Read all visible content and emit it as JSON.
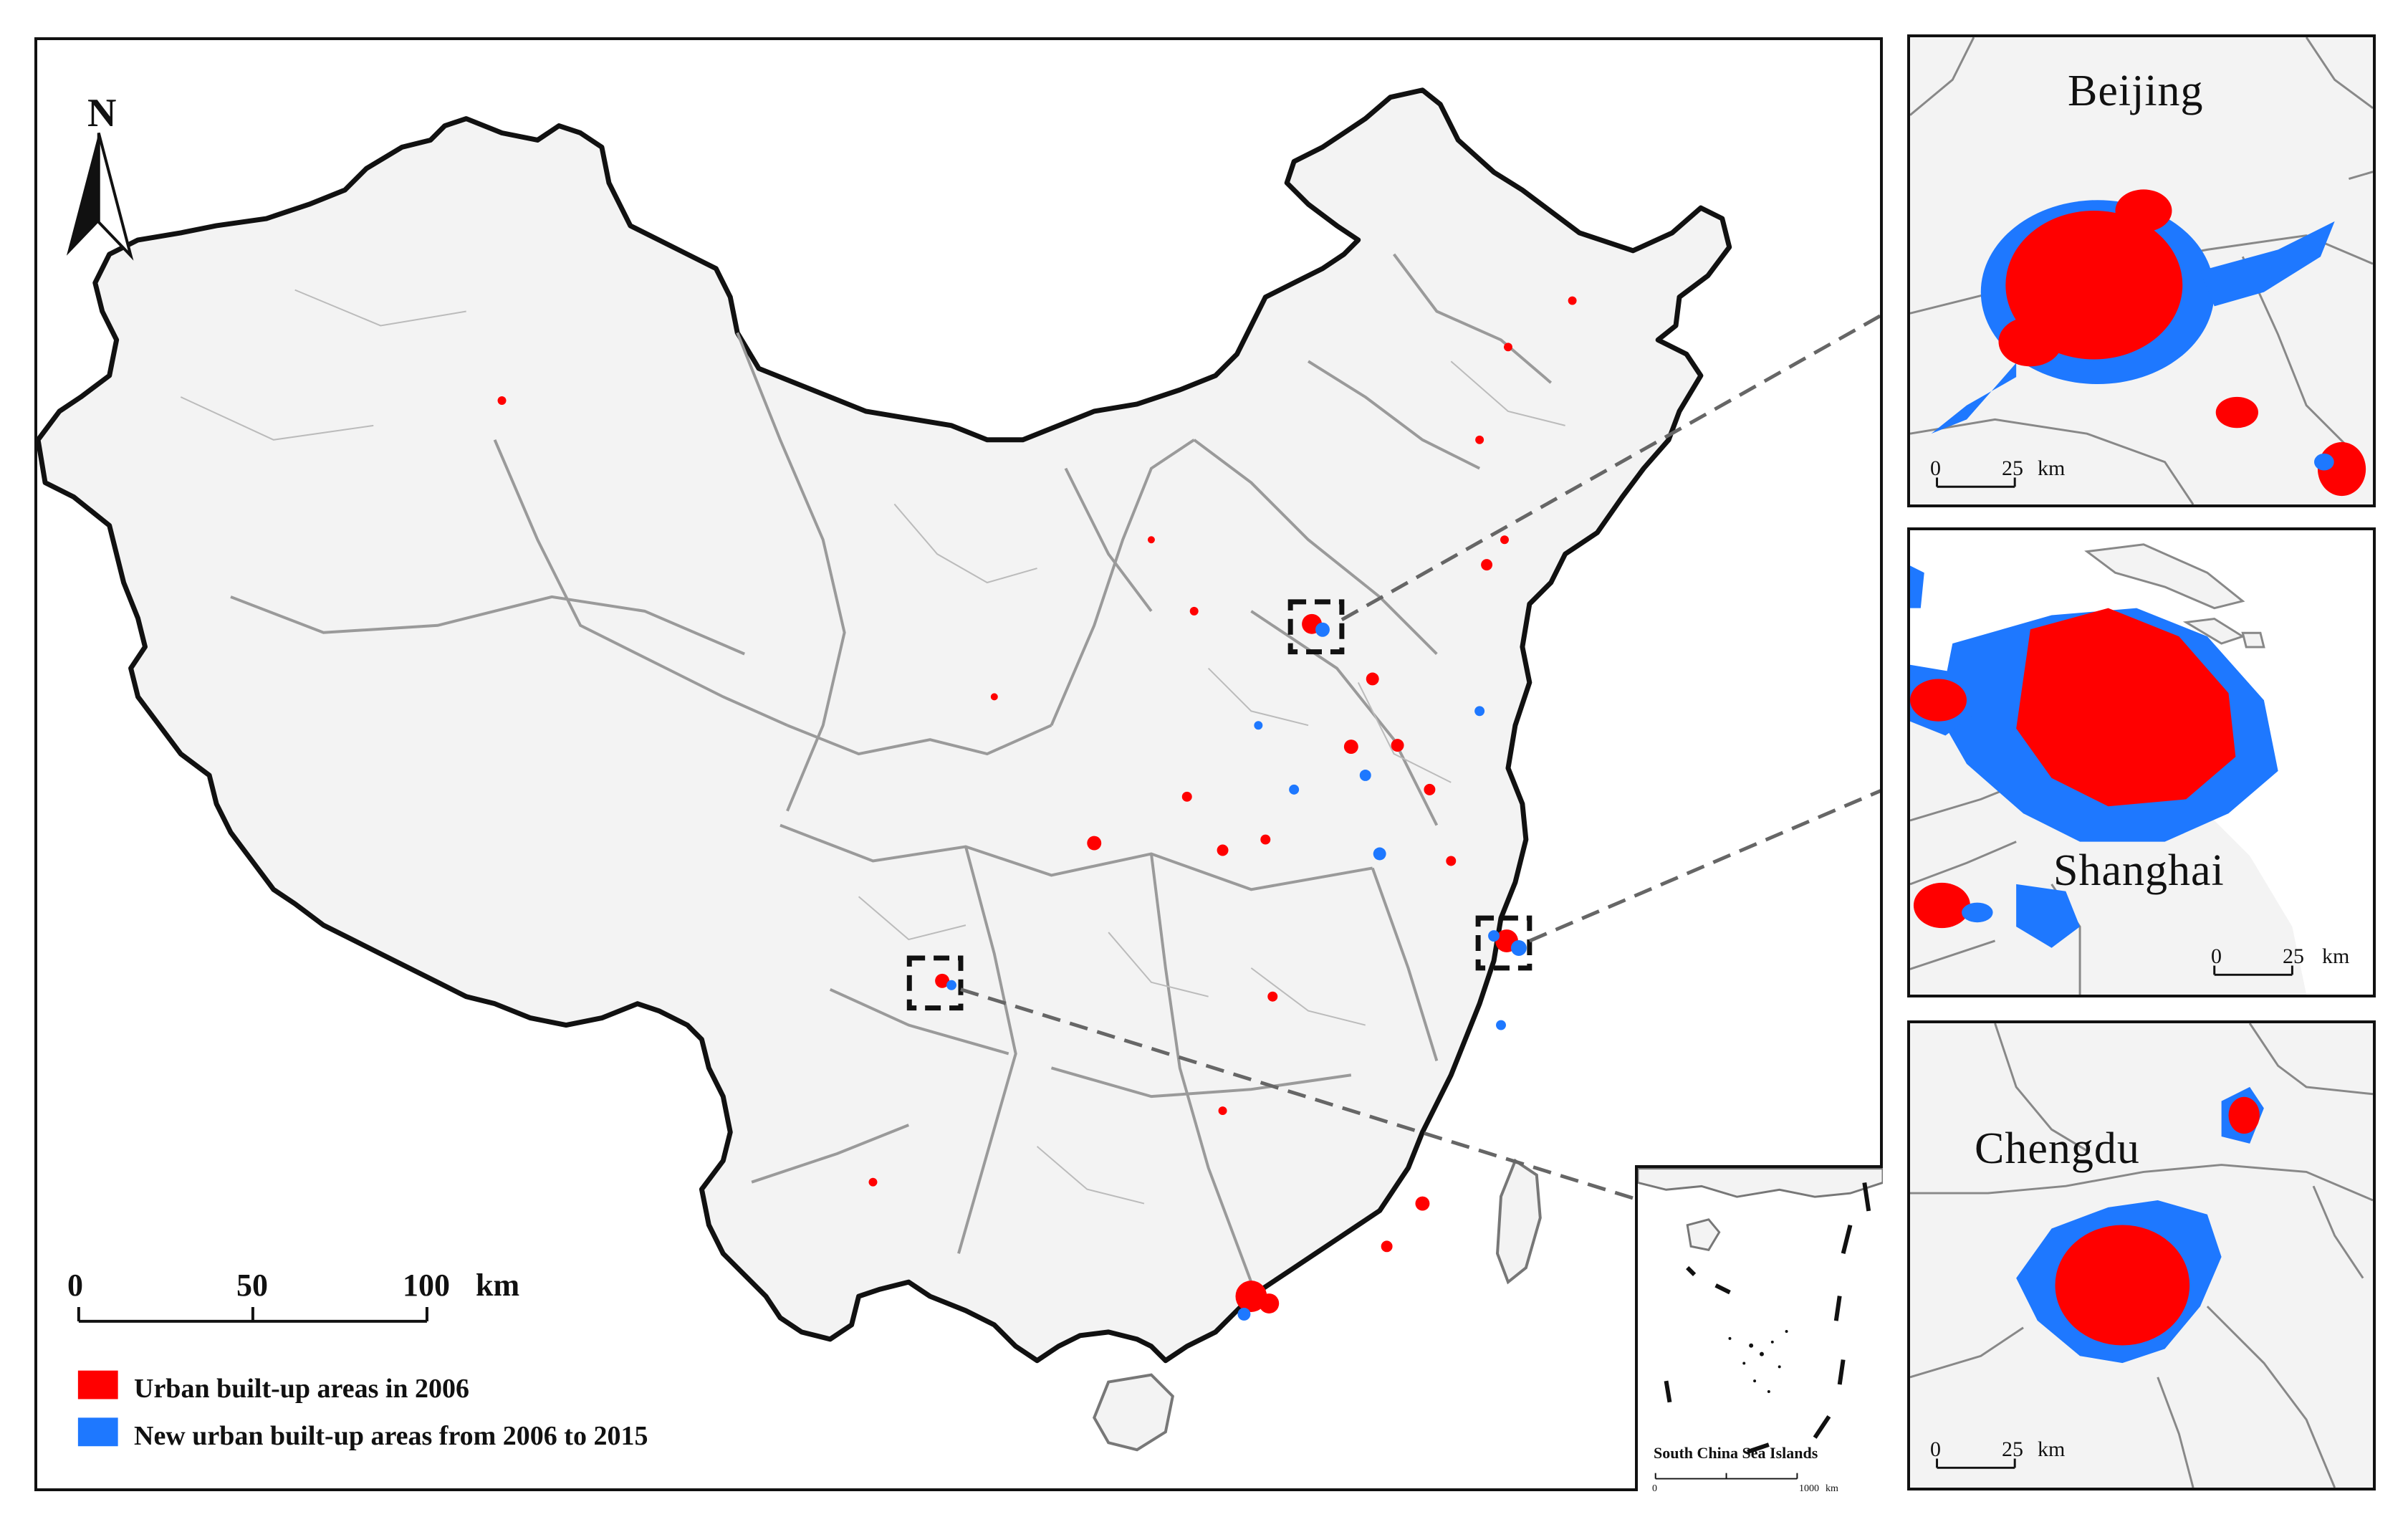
{
  "north_arrow": {
    "label": "N"
  },
  "scale_bar": {
    "ticks": [
      "0",
      "50",
      "100"
    ],
    "unit": "km"
  },
  "legend": [
    {
      "label": "Urban built-up areas in 2006",
      "color": "#ff0000"
    },
    {
      "label": "New urban built-up areas from 2006 to 2015",
      "color": "#1e78ff"
    }
  ],
  "insets": {
    "beijing": {
      "name": "Beijing",
      "scale_ticks": [
        "0",
        "25"
      ],
      "scale_unit": "km"
    },
    "shanghai": {
      "name": "Shanghai",
      "scale_ticks": [
        "0",
        "25"
      ],
      "scale_unit": "km"
    },
    "chengdu": {
      "name": "Chengdu",
      "scale_ticks": [
        "0",
        "25"
      ],
      "scale_unit": "km"
    }
  },
  "sea_inset": {
    "title": "South China Sea Islands",
    "scale_ticks": [
      "0",
      "1000"
    ],
    "scale_unit": "km"
  },
  "colors": {
    "urban_2006": "#ff0000",
    "urban_new": "#1e78ff",
    "land": "#f3f3f3",
    "border": "#111111",
    "province_line": "#9a9a9a"
  }
}
